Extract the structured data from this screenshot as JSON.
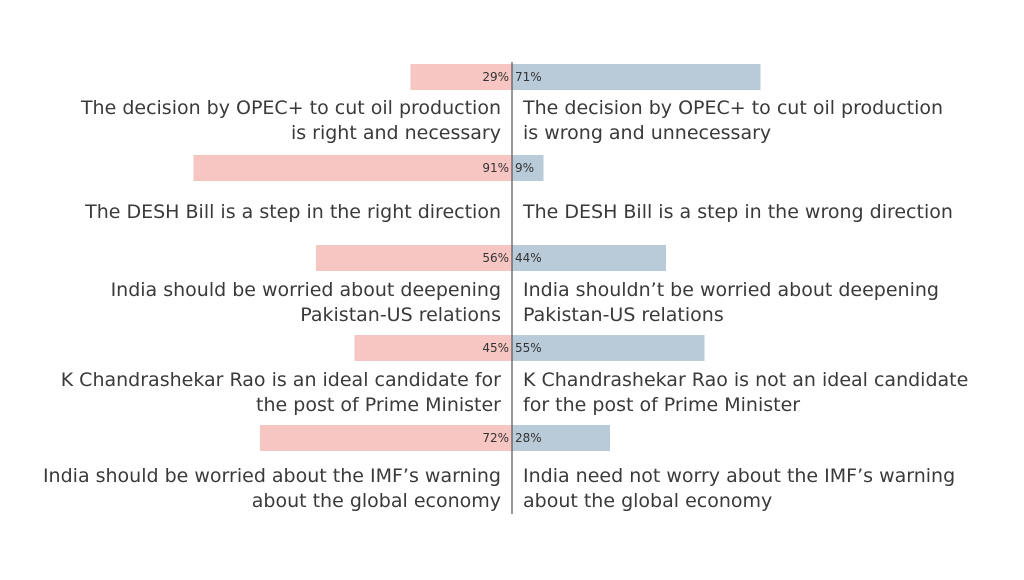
{
  "colors": {
    "left_bar": "#f7c6c2",
    "right_bar": "#b9cad8",
    "axis": "#555555"
  },
  "chart_data": {
    "type": "bar",
    "orientation": "horizontal-diverging",
    "series": [
      {
        "name": "",
        "side": "left",
        "color": "#f7c6c2",
        "values": [
          29,
          91,
          56,
          45,
          72
        ]
      },
      {
        "name": "",
        "side": "right",
        "color": "#b9cad8",
        "values": [
          71,
          9,
          44,
          55,
          28
        ]
      }
    ],
    "items": [
      {
        "left_value": 29,
        "left_label": "29%",
        "right_value": 71,
        "right_label": "71%",
        "left_text": "The decision by OPEC+ to cut oil production\nis right and necessary",
        "right_text": "The decision by OPEC+ to cut oil production\nis wrong and unnecessary"
      },
      {
        "left_value": 91,
        "left_label": "91%",
        "right_value": 9,
        "right_label": "9%",
        "left_text": "The DESH Bill is a step in the right direction",
        "right_text": "The DESH Bill is a step in the wrong direction"
      },
      {
        "left_value": 56,
        "left_label": "56%",
        "right_value": 44,
        "right_label": "44%",
        "left_text": "India should be worried about deepening\nPakistan-US relations",
        "right_text": "India shouldn’t be worried about deepening\nPakistan-US relations"
      },
      {
        "left_value": 45,
        "left_label": "45%",
        "right_value": 55,
        "right_label": "55%",
        "left_text": "K Chandrashekar Rao is an ideal candidate for\nthe post of Prime Minister",
        "right_text": "K Chandrashekar Rao is not an ideal candidate\nfor the post of Prime Minister"
      },
      {
        "left_value": 72,
        "left_label": "72%",
        "right_value": 28,
        "right_label": "28%",
        "left_text": "India should be worried about the IMF’s warning\nabout the global economy",
        "right_text": "India need not worry about the IMF’s warning\nabout the global economy"
      }
    ],
    "title": "",
    "xlabel": "",
    "ylabel": "",
    "xlim": [
      0,
      100
    ],
    "grid": false,
    "legend": "none"
  }
}
